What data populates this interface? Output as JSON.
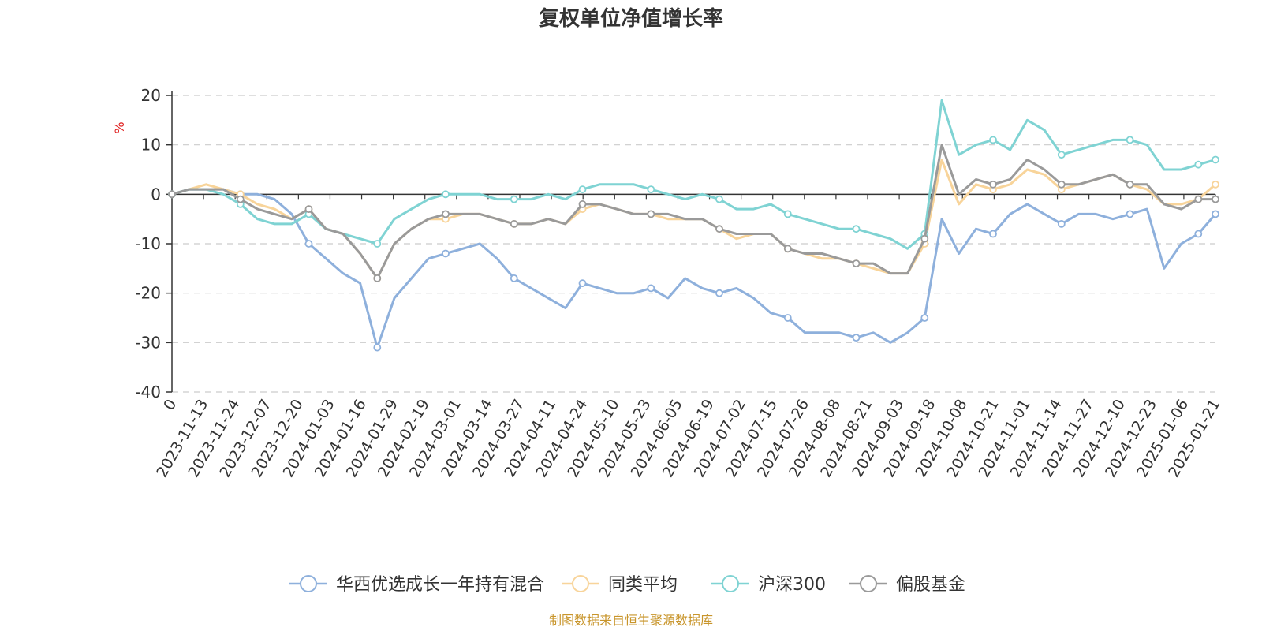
{
  "chart_data": {
    "type": "line",
    "title": "复权单位净值增长率",
    "ylabel": "%",
    "ylim": [
      -40,
      20
    ],
    "yticks": [
      20,
      10,
      0,
      -10,
      -20,
      -30,
      -40
    ],
    "grid": true,
    "legend_position": "bottom",
    "source": "制图数据来自恒生聚源数据库",
    "x_tick_labels": [
      "0",
      "2023-11-13",
      "2023-11-24",
      "2023-12-07",
      "2023-12-20",
      "2024-01-03",
      "2024-01-16",
      "2024-01-29",
      "2024-02-19",
      "2024-03-01",
      "2024-03-14",
      "2024-03-27",
      "2024-04-11",
      "2024-04-24",
      "2024-05-10",
      "2024-05-23",
      "2024-06-05",
      "2024-06-19",
      "2024-07-02",
      "2024-07-15",
      "2024-07-26",
      "2024-08-08",
      "2024-08-21",
      "2024-09-03",
      "2024-09-18",
      "2024-10-08",
      "2024-10-21",
      "2024-11-01",
      "2024-11-14",
      "2024-11-27",
      "2024-12-10",
      "2024-12-23",
      "2025-01-06",
      "2025-01-21"
    ],
    "series": [
      {
        "name": "华西优选成长一年持有混合",
        "color": "#8eb0dc",
        "values": [
          0,
          1,
          1,
          1,
          0,
          0,
          -1,
          -4,
          -10,
          -13,
          -16,
          -18,
          -31,
          -21,
          -17,
          -13,
          -12,
          -11,
          -10,
          -13,
          -17,
          -19,
          -21,
          -23,
          -18,
          -19,
          -20,
          -20,
          -19,
          -21,
          -17,
          -19,
          -20,
          -19,
          -21,
          -24,
          -25,
          -28,
          -28,
          -28,
          -29,
          -28,
          -30,
          -28,
          -25,
          -5,
          -12,
          -7,
          -8,
          -4,
          -2,
          -4,
          -6,
          -4,
          -4,
          -5,
          -4,
          -3,
          -15,
          -10,
          -8,
          -4
        ]
      },
      {
        "name": "同类平均",
        "color": "#f8d49a",
        "values": [
          0,
          1,
          2,
          1,
          0,
          -2,
          -3,
          -5,
          -3,
          -7,
          -8,
          -12,
          -17,
          -10,
          -7,
          -5,
          -5,
          -4,
          -4,
          -5,
          -6,
          -6,
          -5,
          -6,
          -3,
          -2,
          -3,
          -4,
          -4,
          -5,
          -5,
          -5,
          -7,
          -9,
          -8,
          -8,
          -11,
          -12,
          -13,
          -13,
          -14,
          -15,
          -16,
          -16,
          -10,
          7,
          -2,
          2,
          1,
          2,
          5,
          4,
          1,
          2,
          3,
          4,
          2,
          1,
          -2,
          -2,
          -1,
          2
        ]
      },
      {
        "name": "沪深300",
        "color": "#7fd3d3",
        "values": [
          0,
          1,
          1,
          0,
          -2,
          -5,
          -6,
          -6,
          -4,
          -7,
          -8,
          -9,
          -10,
          -5,
          -3,
          -1,
          0,
          0,
          0,
          -1,
          -1,
          -1,
          0,
          -1,
          1,
          2,
          2,
          2,
          1,
          0,
          -1,
          0,
          -1,
          -3,
          -3,
          -2,
          -4,
          -5,
          -6,
          -7,
          -7,
          -8,
          -9,
          -11,
          -8,
          19,
          8,
          10,
          11,
          9,
          15,
          13,
          8,
          9,
          10,
          11,
          11,
          10,
          5,
          5,
          6,
          7
        ]
      },
      {
        "name": "偏股基金",
        "color": "#9a9a9a",
        "values": [
          0,
          1,
          1,
          1,
          -1,
          -3,
          -4,
          -5,
          -3,
          -7,
          -8,
          -12,
          -17,
          -10,
          -7,
          -5,
          -4,
          -4,
          -4,
          -5,
          -6,
          -6,
          -5,
          -6,
          -2,
          -2,
          -3,
          -4,
          -4,
          -4,
          -5,
          -5,
          -7,
          -8,
          -8,
          -8,
          -11,
          -12,
          -12,
          -13,
          -14,
          -14,
          -16,
          -16,
          -9,
          10,
          0,
          3,
          2,
          3,
          7,
          5,
          2,
          2,
          3,
          4,
          2,
          2,
          -2,
          -3,
          -1,
          -1
        ]
      }
    ]
  }
}
